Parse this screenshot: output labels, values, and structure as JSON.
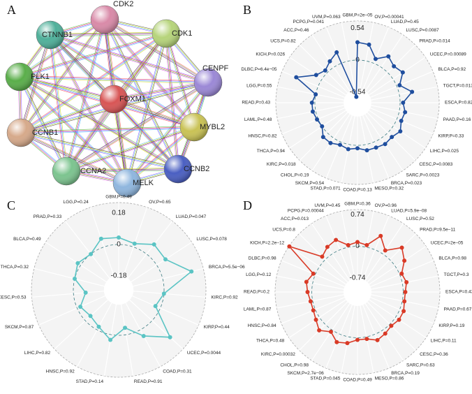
{
  "chart_data": [
    {
      "type": "network",
      "panel_label": "A",
      "nodes": [
        "CDK2",
        "CDK1",
        "CTNNB1",
        "CENPF",
        "PLK1",
        "FOXM1",
        "MYBL2",
        "CCNB1",
        "CCNB2",
        "CCNA2",
        "MELK"
      ],
      "colors": [
        "#d98aa8",
        "#b6d47a",
        "#4fb09a",
        "#9b88d6",
        "#5aae4a",
        "#d85555",
        "#c9c255",
        "#d6a98a",
        "#4a5fc2",
        "#7cc48f",
        "#8fb6de"
      ]
    },
    {
      "type": "radar",
      "panel_label": "B",
      "color": "#1f4e9e",
      "categories": [
        "GBM,P=2e−05",
        "OV,P=0.00041",
        "LUAD,P=0.45",
        "LUSC,P=0.0087",
        "PRAD,P=0.014",
        "UCEC,P=0.00089",
        "BLCA,P=0.92",
        "TGCT,P=0.013",
        "ESCA,P=0.82",
        "PAAD,P=0.16",
        "KIRP,P=0.33",
        "LIHC,P=0.025",
        "CESC,P=0.0083",
        "SARC,P=0.0023",
        "BRCA,P=0.023",
        "MESO,P=0.32",
        "COAD,P=0.13",
        "STAD,P=0.071",
        "SKCM,P=0.54",
        "CHOL,P=0.19",
        "KIRC,P=0.018",
        "THCA,P=0.94",
        "HNSC,P=0.82",
        "LAML,P=0.48",
        "READ,P=0.43",
        "LGG,P=0.55",
        "DLBC,P=6.4e−05",
        "KICH,P=0.026",
        "UCS,P=0.82",
        "ACC,P=0.46",
        "PCPG,P=0.041",
        "UVM,P=0.063"
      ],
      "values": [
        0.3,
        0.28,
        0.08,
        0.22,
        0.15,
        0.2,
        0.05,
        0.22,
        0.05,
        0.1,
        0.08,
        0.15,
        0.1,
        0.12,
        0.1,
        0.1,
        0.05,
        0.08,
        0.05,
        0.1,
        0.1,
        0.0,
        0.02,
        0.05,
        0.05,
        0.0,
        0.4,
        0.12,
        0.05,
        0.12,
        0.2,
        -0.62
      ],
      "ylim": [
        -0.72,
        0.66
      ],
      "yticks": [
        -0.54,
        0,
        0.54
      ]
    },
    {
      "type": "radar",
      "panel_label": "C",
      "color": "#5bc4c4",
      "categories": [
        "GBM,P=0.49",
        "OV,P=0.65",
        "LUAD,P=0.047",
        "LUSC,P=0.078",
        "BRCA,P=5.5e−06",
        "KIRC,P=0.92",
        "KIRP,P=0.44",
        "UCEC,P=0.0044",
        "COAD,P=0.31",
        "READ,P=0.91",
        "STAD,P=0.14",
        "HNSC,P=0.92",
        "LIHC,P=0.82",
        "SKCM,P=0.87",
        "CESC,P=0.53",
        "THCA,P=0.32",
        "BLCA,P=0.49",
        "PRAD,P=0.33",
        "LGG,P=0.24"
      ],
      "values": [
        0.04,
        0.02,
        0.07,
        0.06,
        0.17,
        0.0,
        -0.03,
        0.14,
        0.04,
        -0.04,
        0.03,
        -0.02,
        -0.04,
        -0.02,
        -0.07,
        0.0,
        0.02,
        0.0,
        0.05
      ],
      "ylim": [
        -0.26,
        0.24
      ],
      "yticks": [
        -0.18,
        0,
        0.18
      ]
    },
    {
      "type": "radar",
      "panel_label": "D",
      "color": "#d93a26",
      "categories": [
        "GBM,P=0.36",
        "OV,P=0.96",
        "LUAD,P=5.9e−08",
        "LUSC,P=0.52",
        "PRAD,P=9.5e−11",
        "UCEC,P=2e−05",
        "BLCA,P=0.98",
        "TGCT,P=0.3",
        "ESCA,P=0.43",
        "PAAD,P=0.67",
        "KIRP,P=0.19",
        "LIHC,P=0.11",
        "CESC,P=0.36",
        "SARC,P=0.63",
        "BRCA,P=0.19",
        "MESO,P=0.86",
        "COAD,P=0.49",
        "STAD,P=0.045",
        "SKCM,P=2.7e−06",
        "CHOL,P=0.98",
        "KIRC,P=0.00032",
        "THCA,P=0.48",
        "HNSC,P=0.84",
        "LAML,P=0.87",
        "READ,P=0.2",
        "LGG,P=0.12",
        "DLBC,P=0.98",
        "KICH,P=2.2e−12",
        "UCS,P=0.8",
        "ACC,P=0.013",
        "PCPG,P=0.00044",
        "UVM,P=0.45"
      ],
      "values": [
        0.1,
        0.05,
        0.35,
        0.1,
        0.4,
        0.25,
        0.05,
        0.1,
        0.05,
        0.05,
        0.1,
        0.1,
        0.05,
        0.1,
        0.15,
        0.05,
        0.05,
        0.15,
        0.2,
        0.05,
        0.2,
        0.1,
        0.05,
        0.05,
        0.1,
        0.15,
        0.05,
        0.85,
        0.1,
        0.2,
        0.25,
        0.05
      ],
      "ylim": [
        -1.07,
        0.86
      ],
      "yticks": [
        -0.74,
        0,
        0.74
      ]
    }
  ]
}
